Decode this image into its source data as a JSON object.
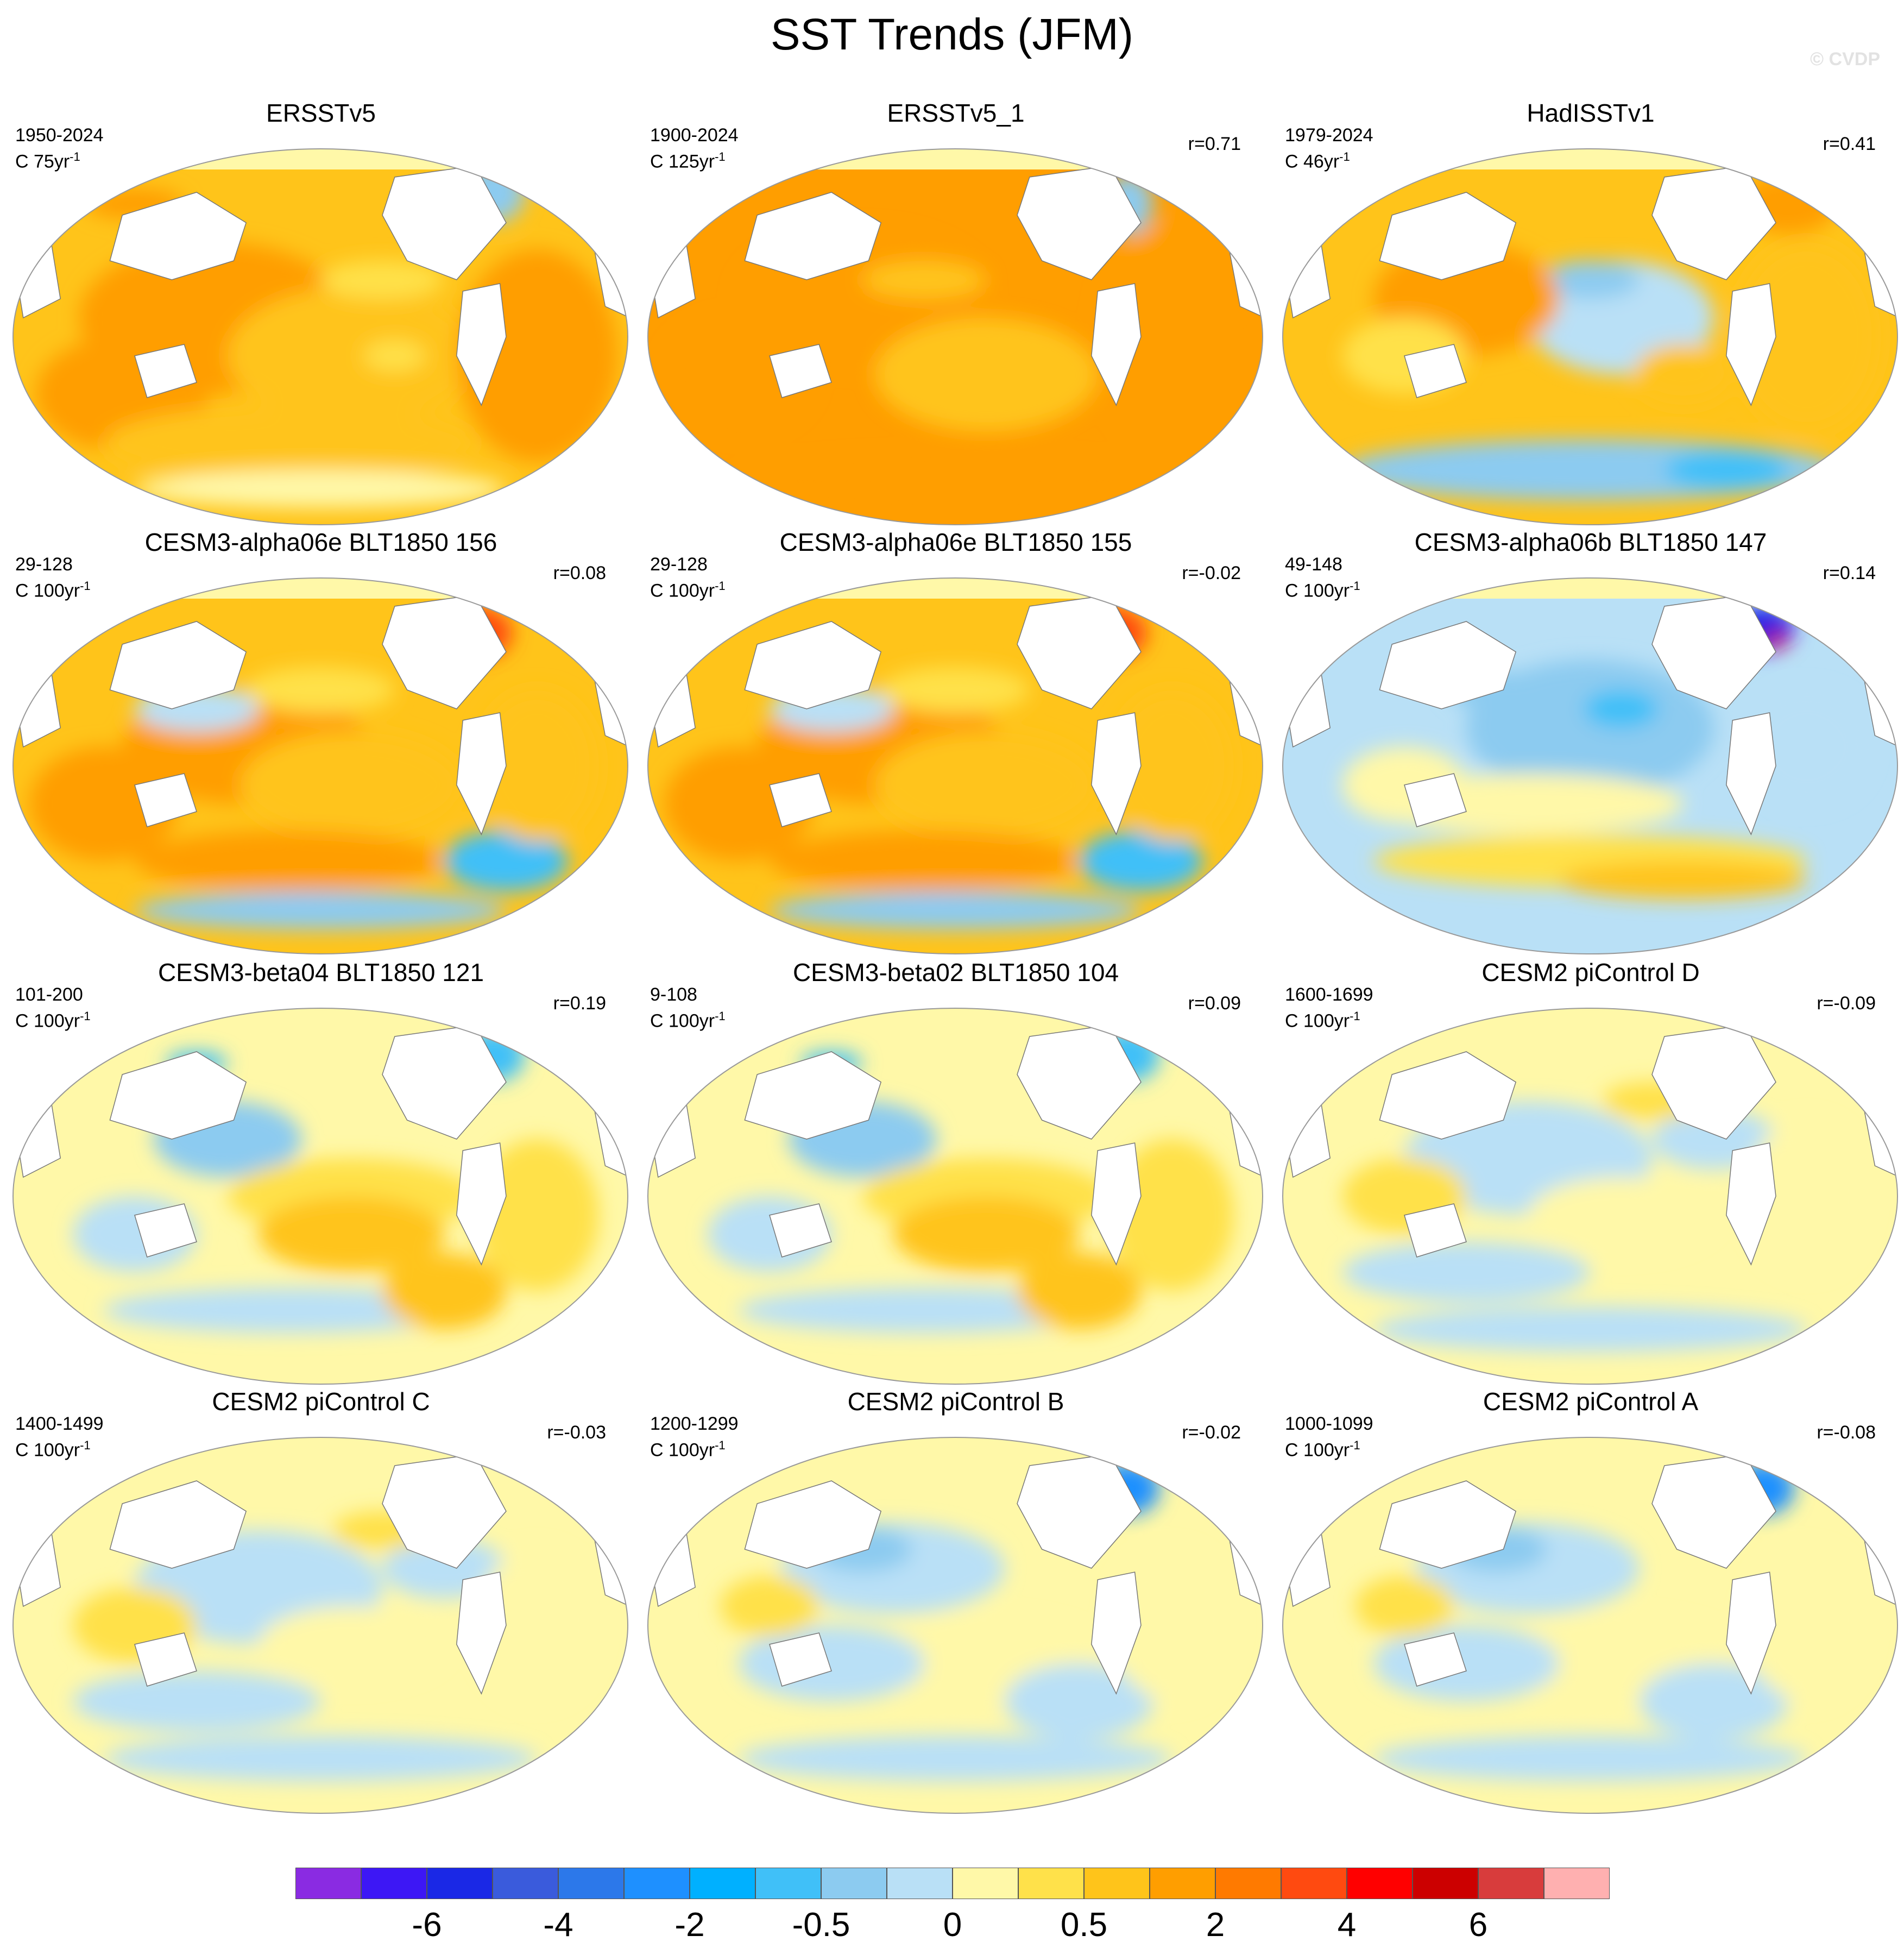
{
  "title": "SST Trends (JFM)",
  "watermark": "© CVDP",
  "colorbar": {
    "colors": [
      "#8a2be2",
      "#3d17f5",
      "#1a28e6",
      "#3a5bdc",
      "#2c78ea",
      "#1e90ff",
      "#00b0ff",
      "#40c0f8",
      "#8ccbf0",
      "#b9e0f6",
      "#fff8a8",
      "#ffe14a",
      "#ffc41a",
      "#ff9e00",
      "#ff7a00",
      "#ff4a10",
      "#ff0000",
      "#cc0000",
      "#d83c3c",
      "#ffb0b0"
    ],
    "labels": [
      {
        "text": "-6",
        "boundary": 2
      },
      {
        "text": "-4",
        "boundary": 4
      },
      {
        "text": "-2",
        "boundary": 6
      },
      {
        "text": "-0.5",
        "boundary": 8
      },
      {
        "text": "0",
        "boundary": 10
      },
      {
        "text": "0.5",
        "boundary": 12
      },
      {
        "text": "2",
        "boundary": 14
      },
      {
        "text": "4",
        "boundary": 16
      },
      {
        "text": "6",
        "boundary": 18
      }
    ]
  },
  "panels": [
    {
      "title": "ERSSTv5",
      "period": "1950-2024",
      "units": "C 75yr",
      "units_exp": "-1",
      "r": "",
      "pattern": "warm_strong"
    },
    {
      "title": "ERSSTv5_1",
      "period": "1900-2024",
      "units": "C 125yr",
      "units_exp": "-1",
      "r": "r=0.71",
      "pattern": "warm_strong2"
    },
    {
      "title": "HadISSTv1",
      "period": "1979-2024",
      "units": "C 46yr",
      "units_exp": "-1",
      "r": "r=0.41",
      "pattern": "warm_mixed"
    },
    {
      "title": "CESM3-alpha06e BLT1850 156",
      "period": "29-128",
      "units": "C 100yr",
      "units_exp": "-1",
      "r": "r=0.08",
      "pattern": "warm"
    },
    {
      "title": "CESM3-alpha06e BLT1850 155",
      "period": "29-128",
      "units": "C 100yr",
      "units_exp": "-1",
      "r": "r=-0.02",
      "pattern": "warm"
    },
    {
      "title": "CESM3-alpha06b BLT1850 147",
      "period": "49-148",
      "units": "C 100yr",
      "units_exp": "-1",
      "r": "r=0.14",
      "pattern": "cool_spot"
    },
    {
      "title": "CESM3-beta04 BLT1850 121",
      "period": "101-200",
      "units": "C 100yr",
      "units_exp": "-1",
      "r": "r=0.19",
      "pattern": "mixed_warm"
    },
    {
      "title": "CESM3-beta02 BLT1850 104",
      "period": "9-108",
      "units": "C 100yr",
      "units_exp": "-1",
      "r": "r=0.09",
      "pattern": "mixed_warm"
    },
    {
      "title": "CESM2 piControl D",
      "period": "1600-1699",
      "units": "C 100yr",
      "units_exp": "-1",
      "r": "r=-0.09",
      "pattern": "neutral"
    },
    {
      "title": "CESM2 piControl C",
      "period": "1400-1499",
      "units": "C 100yr",
      "units_exp": "-1",
      "r": "r=-0.03",
      "pattern": "neutral"
    },
    {
      "title": "CESM2 piControl B",
      "period": "1200-1299",
      "units": "C 100yr",
      "units_exp": "-1",
      "r": "r=-0.02",
      "pattern": "neutral_cool"
    },
    {
      "title": "CESM2 piControl A",
      "period": "1000-1099",
      "units": "C 100yr",
      "units_exp": "-1",
      "r": "r=-0.08",
      "pattern": "neutral_cool"
    }
  ]
}
